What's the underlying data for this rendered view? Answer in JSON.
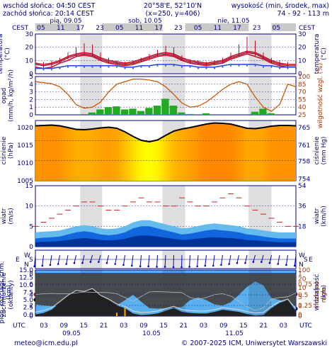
{
  "header": {
    "sunrise": "wschód słońca: 04:50 CEST",
    "sunset": "zachód słońca: 20:14 CEST",
    "coords": "20°58'E, 52°10'N",
    "grid": "(x=250, y=406)",
    "elev_label": "wysokość (min, środek, max)",
    "elev_values": "74 - 92 - 113 m"
  },
  "timeline": {
    "top_label_left": "CEST",
    "top_label_right": "CEST",
    "top_hours": [
      "05",
      "11",
      "17",
      "23",
      "05",
      "11",
      "17",
      "23",
      "05",
      "11",
      "17",
      "23",
      "05"
    ],
    "day_labels_top": [
      "pią, 09.05",
      "sob, 10.05",
      "nie, 11.05"
    ],
    "bottom_label_left": "UTC",
    "bottom_label_right": "UTC",
    "bottom_hours": [
      "03",
      "09",
      "15",
      "21",
      "03",
      "09",
      "15",
      "21",
      "03",
      "09",
      "15",
      "21",
      "03"
    ],
    "day_labels_bottom": [
      "09.05",
      "10.05",
      "11.05"
    ]
  },
  "footer": {
    "email": "meteo@icm.edu.pl",
    "copyright": "© 2007-2025 ICM, Uniwersytet Warszawski"
  },
  "colors": {
    "day_band": "#d8d8d8",
    "temp": "#cc0022",
    "dew": "#2244dd",
    "precip": "#22aa22",
    "humidity": "#cc5500",
    "wind": "#1166dd",
    "gust": "#cc2222",
    "pressure_low": "#ffff00",
    "pressure_high": "#ff8800",
    "sky": "#5ab0ee",
    "cloud": "#444444"
  },
  "chart_data": [
    {
      "name": "temperatura",
      "type": "line",
      "left_label": "temperatura (°C)",
      "right_label": "temperatura (°C)",
      "ylim": [
        0,
        30
      ],
      "yticks": [
        0,
        10,
        20,
        30
      ],
      "series": [
        {
          "name": "temperatura",
          "values": [
            7,
            6,
            7,
            9,
            12,
            14,
            15,
            14,
            11,
            9,
            8,
            7,
            8,
            10,
            12,
            14,
            15,
            14,
            11,
            9,
            8,
            7,
            8,
            9,
            12,
            14,
            16,
            15,
            12,
            9,
            7,
            6,
            6
          ]
        },
        {
          "name": "temperatura min",
          "values": [
            5,
            4,
            5,
            8,
            10,
            13,
            14,
            13,
            10,
            8,
            7,
            6,
            7,
            9,
            11,
            13,
            14,
            13,
            10,
            8,
            7,
            6,
            7,
            8,
            11,
            13,
            15,
            13,
            11,
            8,
            6,
            5,
            5
          ]
        },
        {
          "name": "temperatura max",
          "values": [
            8,
            7,
            8,
            10,
            13,
            15,
            16,
            15,
            12,
            10,
            9,
            8,
            9,
            11,
            13,
            15,
            16,
            15,
            12,
            10,
            9,
            8,
            9,
            10,
            13,
            15,
            17,
            16,
            13,
            10,
            8,
            7,
            7
          ]
        },
        {
          "name": "punkt rosy",
          "values": [
            4,
            4,
            4,
            5,
            6,
            6,
            6,
            6,
            6,
            6,
            6,
            5,
            5,
            6,
            6,
            7,
            7,
            7,
            6,
            6,
            5,
            5,
            5,
            6,
            7,
            7,
            7,
            7,
            6,
            6,
            5,
            5,
            5
          ]
        },
        {
          "name": "rozrzut",
          "values": [
            8,
            9,
            10,
            12,
            16,
            20,
            23,
            22,
            16,
            12,
            10,
            9,
            10,
            12,
            15,
            18,
            21,
            20,
            14,
            11,
            10,
            9,
            10,
            12,
            16,
            22,
            28,
            25,
            16,
            12,
            10,
            9,
            8
          ]
        }
      ]
    },
    {
      "name": "opad",
      "type": "bar",
      "left_label": "opad (mm/h, kg/m²/h)",
      "right_label": "wilgotność wzgl. (%)",
      "ylim": [
        0,
        5
      ],
      "yticks": [
        0,
        1,
        2,
        3,
        4,
        5
      ],
      "ylim_right": [
        25,
        100
      ],
      "yticks_right": [
        25,
        40,
        55,
        70,
        85,
        100
      ],
      "series": [
        {
          "name": "opad",
          "values": [
            0,
            0,
            0,
            0,
            0,
            0,
            0,
            0.3,
            0.7,
            1.0,
            1.1,
            0.7,
            0.8,
            0.5,
            0.9,
            1.2,
            2.1,
            1.2,
            0.3,
            0.1,
            0,
            0.2,
            0,
            0,
            0,
            0,
            0,
            0.4,
            0.8,
            0.2,
            0,
            0,
            0
          ]
        },
        {
          "name": "wilgotność",
          "values": [
            90,
            88,
            86,
            80,
            65,
            45,
            38,
            40,
            50,
            70,
            85,
            90,
            95,
            95,
            93,
            90,
            80,
            65,
            48,
            40,
            42,
            50,
            62,
            75,
            85,
            90,
            85,
            60,
            40,
            32,
            45,
            85,
            80
          ]
        }
      ]
    },
    {
      "name": "ciśnienie",
      "type": "line",
      "left_label": "ciśnienie (hPa)",
      "right_label": "ciśnienie (mm Hg)",
      "ylim": [
        1005,
        1022
      ],
      "yticks": [
        1005,
        1010,
        1015,
        1020
      ],
      "yticks_right": [
        754,
        758,
        761,
        765
      ],
      "series": [
        {
          "name": "ciśnienie",
          "values": [
            1020.5,
            1020.6,
            1020.7,
            1020.5,
            1020.0,
            1019.5,
            1019.4,
            1019.6,
            1019.9,
            1020.1,
            1019.8,
            1018.8,
            1017.5,
            1016.4,
            1016.0,
            1016.5,
            1017.8,
            1019.0,
            1019.6,
            1020.0,
            1020.5,
            1021.0,
            1021.3,
            1021.2,
            1021.0,
            1020.4,
            1019.8,
            1019.7,
            1020.0,
            1020.4,
            1020.6,
            1020.6,
            1020.5
          ]
        }
      ]
    },
    {
      "name": "wiatr",
      "type": "area",
      "left_label": "wiatr (m/s)",
      "right_label": "wiatr (km/h)",
      "ylim": [
        0,
        15
      ],
      "yticks": [
        0,
        5,
        10,
        15
      ],
      "yticks_right": [
        18,
        36,
        54
      ],
      "series": [
        {
          "name": "wiatr",
          "values": [
            2.0,
            2.2,
            2.3,
            2.5,
            3.0,
            3.5,
            3.8,
            3.5,
            3.0,
            2.8,
            3.0,
            3.5,
            4.5,
            5.0,
            5.0,
            4.5,
            4.0,
            3.5,
            3.0,
            3.2,
            3.6,
            4.0,
            4.2,
            4.0,
            3.8,
            3.5,
            3.0,
            2.8,
            2.5,
            2.2,
            2.0,
            2.0,
            2.0
          ]
        },
        {
          "name": "porywy",
          "values": [
            5,
            6,
            7,
            8,
            9,
            10,
            11,
            11,
            10,
            9,
            9,
            10,
            11,
            12,
            11,
            11,
            10,
            10,
            12,
            11,
            10,
            10,
            11,
            12,
            13,
            12,
            10,
            9,
            8,
            7,
            6,
            5,
            5
          ]
        }
      ]
    },
    {
      "name": "kierunek wiatru",
      "type": "scatter",
      "left_label": "W S N",
      "right_label": "W S N",
      "ytick_labels": [
        "N",
        "W",
        "S",
        "E"
      ],
      "series": [
        {
          "name": "kierunek (°)",
          "values": [
            30,
            40,
            50,
            60,
            60,
            70,
            70,
            80,
            80,
            70,
            60,
            50,
            40,
            30,
            30,
            20,
            20,
            10,
            10,
            20,
            30,
            40,
            40,
            50,
            60,
            70,
            70,
            80,
            80,
            70,
            60,
            50,
            40
          ]
        }
      ]
    },
    {
      "name": "widzialność",
      "type": "scatter",
      "left_label": "pion. rozciągł. chm. (km)",
      "right_label": "widzialność (km)",
      "ylim": [
        0,
        15
      ],
      "yticks": [
        0,
        2.5,
        5,
        7.5,
        10,
        12.5,
        15
      ],
      "ytick_labels": [
        "0.0",
        "2.5",
        "5.0",
        "7.5",
        "10.0",
        "12.5",
        "15.0"
      ],
      "ylim_right": [
        0,
        100
      ],
      "yticks_right": [
        0,
        1,
        5,
        10,
        20,
        100
      ],
      "series": [
        {
          "name": "widzialność",
          "values": [
            22,
            22,
            22,
            20,
            22,
            22,
            21,
            22,
            22,
            20,
            20,
            14,
            18,
            20,
            22,
            20,
            21,
            20,
            19,
            20,
            21,
            22,
            22,
            20,
            19,
            20,
            14,
            20,
            22,
            22,
            21,
            21,
            21
          ]
        },
        {
          "name": "podstawa chmur",
          "values": [
            5.0,
            5.0,
            5.1,
            4.8,
            5.6,
            5.8,
            5.9,
            5.6,
            6.0,
            5.4,
            5.0,
            5.2,
            5.5,
            5.6,
            5.8,
            5.9,
            5.6,
            5.4,
            4.8,
            5.5,
            5.6,
            4.9,
            5.6,
            5.8,
            5.9,
            5.6,
            5.0,
            4.8,
            5.6,
            5.4,
            5.2,
            4.2,
            2.0
          ]
        },
        {
          "name": "wierzchołek chmur",
          "values": [
            6.8,
            6.5,
            6.6,
            6.9,
            7.0,
            6.8,
            6.9,
            6.8,
            6.4,
            6.5,
            6.9,
            6.5,
            6.8,
            6.7,
            6.9,
            6.4,
            6.5,
            6.5,
            6.9,
            7.0,
            6.9,
            6.7,
            6.9,
            7.0,
            7.1,
            7.1,
            6.8,
            6.5,
            6.9,
            7.3,
            6.9,
            6.5,
            6.9
          ]
        }
      ]
    },
    {
      "name": "zachmurzenie",
      "type": "area",
      "left_label": "zachmurzenie (oktanty)",
      "right_label": "(frakcja) mgła",
      "ylim": [
        0,
        8
      ],
      "yticks": [
        0,
        2,
        4,
        6,
        8
      ],
      "ylim_right": [
        0,
        1
      ],
      "yticks_right": [
        0,
        0.25,
        0.5,
        0.75,
        1
      ],
      "series": [
        {
          "name": "zachmurzenie całkowite",
          "values": [
            5.8,
            6.0,
            6.1,
            6.0,
            6.0,
            6.2,
            6.5,
            6.4,
            6.4,
            6.3,
            6.0,
            5.0,
            4.0,
            5.3,
            6.5,
            6.6,
            6.5,
            6.4,
            6.3,
            5.0,
            4.5,
            5.0,
            5.8,
            6.0,
            5.4,
            4.0,
            2.5,
            1.5,
            2.2,
            4.6,
            5.0,
            5.2,
            6.2
          ]
        },
        {
          "name": "zachmurzenie niskie",
          "values": [
            0.3,
            0.6,
            1.2,
            2.5,
            3.8,
            4.8,
            4.6,
            5.2,
            3.8,
            3.0,
            2.0,
            1.5,
            0.5,
            0.2,
            0.3,
            0.5,
            1.0,
            1.5,
            0.8,
            0.6,
            0.5,
            0.5,
            0.8,
            1.2,
            1.0,
            0.8,
            0.4,
            0.1,
            0.2,
            1.5,
            2.5,
            3.0,
            1.0
          ]
        },
        {
          "name": "mgła",
          "values": [
            0,
            0,
            0,
            0,
            0,
            0,
            0,
            0,
            0,
            0,
            0.02,
            0.05,
            0,
            0,
            0,
            0,
            0,
            0,
            0,
            0,
            0,
            0,
            0,
            0,
            0,
            0,
            0,
            0,
            0,
            0,
            0,
            0,
            0
          ]
        }
      ]
    }
  ]
}
